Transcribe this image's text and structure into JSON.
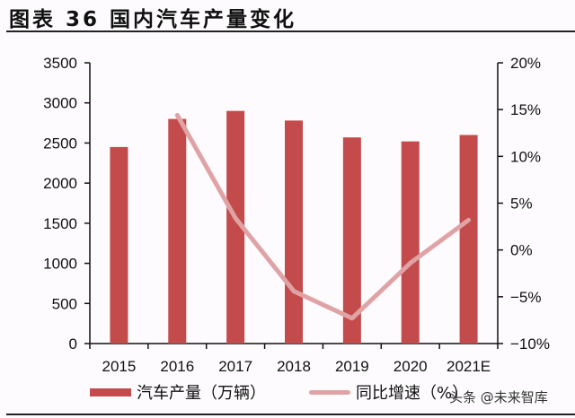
{
  "header": {
    "title": "图表 36  国内汽车产量变化"
  },
  "legend": {
    "bar_label": "汽车产量（万辆）",
    "line_label": "同比增速（%）"
  },
  "watermark": "头条 @未来智库",
  "colors": {
    "bar": "#c44b4b",
    "line": "#e0a3a5",
    "axis": "#111111",
    "background": "#fdfbfd"
  },
  "chart_data": {
    "type": "bar",
    "title": "图表 36 国内汽车产量变化",
    "categories": [
      "2015",
      "2016",
      "2017",
      "2018",
      "2019",
      "2020",
      "2021E"
    ],
    "series": [
      {
        "name": "汽车产量（万辆）",
        "type": "bar",
        "axis": "left",
        "values": [
          2450,
          2800,
          2900,
          2780,
          2570,
          2520,
          2600
        ]
      },
      {
        "name": "同比增速（%）",
        "type": "line",
        "axis": "right",
        "values": [
          null,
          14.4,
          3.4,
          -4.4,
          -7.3,
          -1.4,
          3.2
        ]
      }
    ],
    "y_left": {
      "min": 0,
      "max": 3500,
      "ticks": [
        "0",
        "500",
        "1000",
        "1500",
        "2000",
        "2500",
        "3000",
        "3500"
      ]
    },
    "y_right": {
      "min": -10,
      "max": 20,
      "ticks": [
        "-10%",
        "-5%",
        "0%",
        "5%",
        "10%",
        "15%",
        "20%"
      ]
    },
    "xlabel": "",
    "ylabel": "",
    "grid": false,
    "legend_position": "bottom"
  }
}
